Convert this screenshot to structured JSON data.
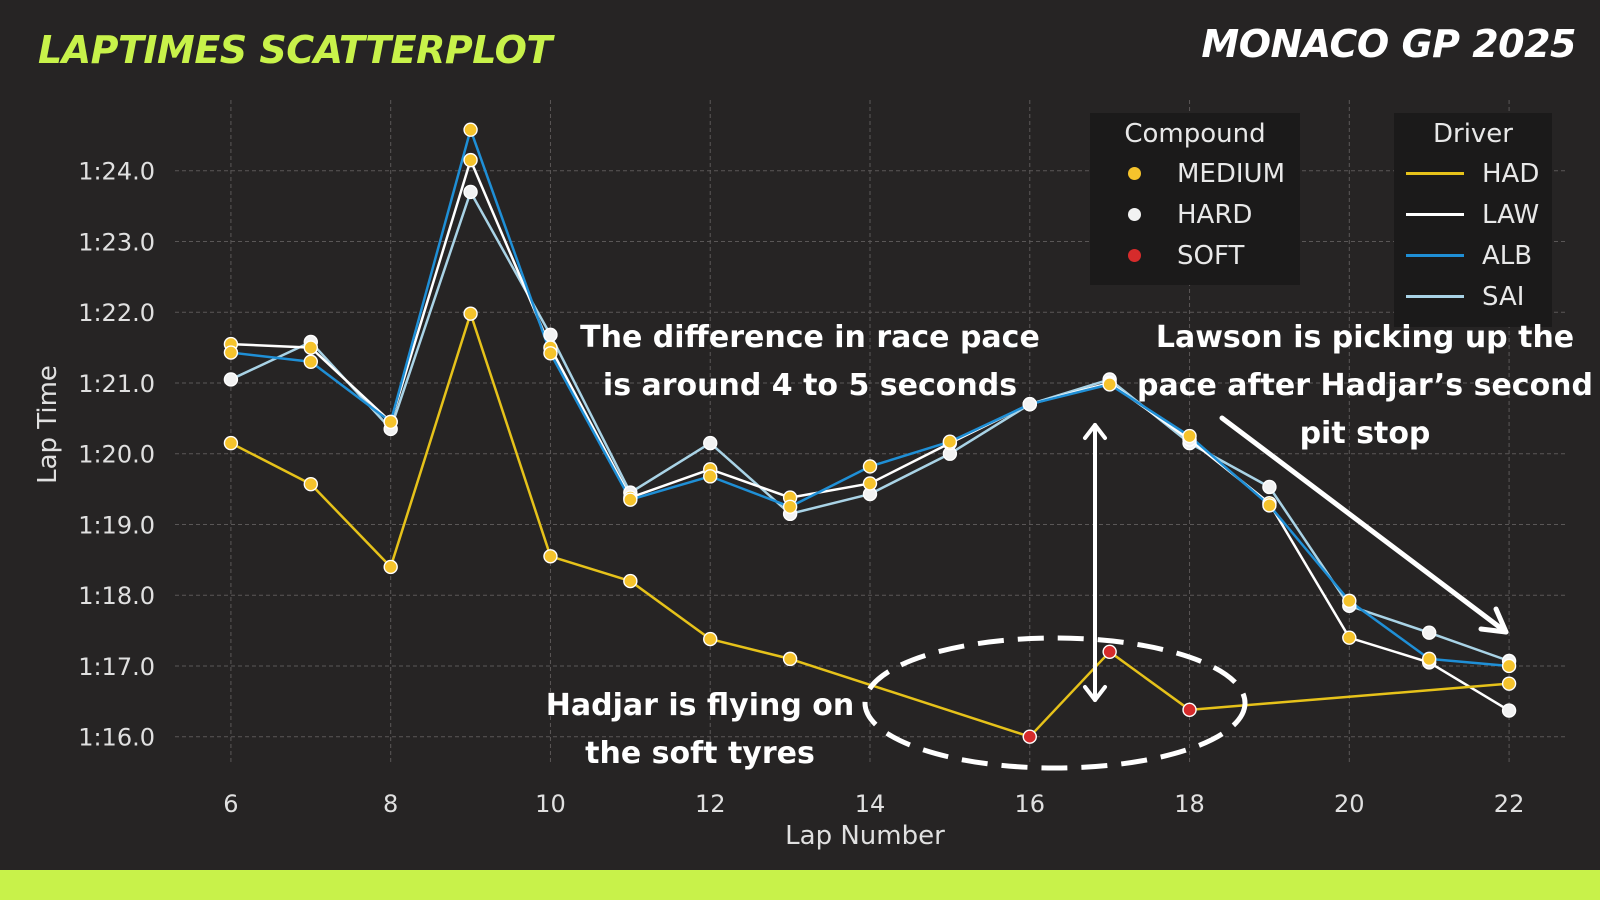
{
  "header": {
    "title": "LAPTIMES SCATTERPLOT",
    "race": "MONACO GP 2025"
  },
  "legend_compound": {
    "title": "Compound",
    "items": [
      {
        "label": "MEDIUM",
        "color": "#f5c32c"
      },
      {
        "label": "HARD",
        "color": "#f2f2f2"
      },
      {
        "label": "SOFT",
        "color": "#d62b2b"
      }
    ]
  },
  "legend_driver": {
    "title": "Driver",
    "items": [
      {
        "label": "HAD",
        "color": "#e6c21a"
      },
      {
        "label": "LAW",
        "color": "#ffffff"
      },
      {
        "label": "ALB",
        "color": "#1f8fd6"
      },
      {
        "label": "SAI",
        "color": "#a9d3e6"
      }
    ]
  },
  "annotations": {
    "pace_gap": "The difference in race pace\nis around 4 to 5 seconds",
    "lawson": "Lawson is picking up the\npace after Hadjar’s second\npit stop",
    "hadjar": "Hadjar is flying on\nthe soft tyres"
  },
  "chart_data": {
    "type": "scatter",
    "xlabel": "Lap Number",
    "ylabel": "Lap Time",
    "xlim": [
      5.3,
      22.7
    ],
    "ylim": [
      75.6,
      85.0
    ],
    "x_ticks": [
      6,
      8,
      10,
      12,
      14,
      16,
      18,
      20,
      22
    ],
    "y_ticks": [
      {
        "value": 76,
        "label": "1:16.0"
      },
      {
        "value": 77,
        "label": "1:17.0"
      },
      {
        "value": 78,
        "label": "1:18.0"
      },
      {
        "value": 79,
        "label": "1:19.0"
      },
      {
        "value": 80,
        "label": "1:20.0"
      },
      {
        "value": 81,
        "label": "1:21.0"
      },
      {
        "value": 82,
        "label": "1:22.0"
      },
      {
        "value": 83,
        "label": "1:23.0"
      },
      {
        "value": 84,
        "label": "1:24.0"
      }
    ],
    "grid": true,
    "series": [
      {
        "name": "SAI",
        "color": "#a9d3e6",
        "x": [
          6,
          7,
          8,
          9,
          10,
          11,
          12,
          13,
          14,
          15,
          16,
          17,
          18,
          19,
          20,
          21,
          22
        ],
        "y": [
          81.05,
          81.58,
          80.35,
          83.7,
          81.68,
          79.45,
          80.15,
          79.15,
          79.43,
          80.0,
          80.7,
          81.05,
          80.15,
          79.53,
          77.85,
          77.47,
          77.07
        ],
        "compound": [
          "HARD",
          "HARD",
          "HARD",
          "HARD",
          "HARD",
          "HARD",
          "HARD",
          "HARD",
          "HARD",
          "HARD",
          "HARD",
          "HARD",
          "HARD",
          "HARD",
          "HARD",
          "HARD",
          "HARD"
        ]
      },
      {
        "name": "LAW",
        "color": "#ffffff",
        "x": [
          6,
          7,
          8,
          9,
          10,
          11,
          12,
          13,
          14,
          15,
          16,
          17,
          18,
          19,
          20,
          21,
          22
        ],
        "y": [
          81.55,
          81.5,
          80.45,
          84.15,
          81.5,
          79.38,
          79.78,
          79.38,
          79.58,
          80.15,
          80.7,
          81.0,
          80.2,
          79.3,
          77.4,
          77.05,
          76.37
        ],
        "compound": [
          "MEDIUM",
          "MEDIUM",
          "MEDIUM",
          "MEDIUM",
          "MEDIUM",
          "MEDIUM",
          "MEDIUM",
          "MEDIUM",
          "MEDIUM",
          "MEDIUM",
          "HARD",
          "HARD",
          "HARD",
          "MEDIUM",
          "MEDIUM",
          "HARD",
          "HARD"
        ]
      },
      {
        "name": "ALB",
        "color": "#1f8fd6",
        "x": [
          6,
          7,
          8,
          9,
          10,
          11,
          12,
          13,
          14,
          15,
          16,
          17,
          18,
          19,
          20,
          21,
          22
        ],
        "y": [
          81.43,
          81.3,
          80.45,
          84.58,
          81.42,
          79.35,
          79.68,
          79.25,
          79.82,
          80.17,
          80.7,
          80.98,
          80.25,
          79.27,
          77.92,
          77.1,
          77.0
        ],
        "compound": [
          "MEDIUM",
          "MEDIUM",
          "MEDIUM",
          "MEDIUM",
          "MEDIUM",
          "MEDIUM",
          "MEDIUM",
          "MEDIUM",
          "MEDIUM",
          "MEDIUM",
          "HARD",
          "MEDIUM",
          "MEDIUM",
          "MEDIUM",
          "MEDIUM",
          "MEDIUM",
          "MEDIUM"
        ]
      },
      {
        "name": "HAD",
        "color": "#e6c21a",
        "x": [
          6,
          7,
          8,
          9,
          10,
          11,
          12,
          13,
          16,
          17,
          18,
          22
        ],
        "y": [
          80.15,
          79.57,
          78.4,
          81.98,
          78.55,
          78.2,
          77.38,
          77.1,
          76.0,
          77.2,
          76.38,
          76.75
        ],
        "compound": [
          "MEDIUM",
          "MEDIUM",
          "MEDIUM",
          "MEDIUM",
          "MEDIUM",
          "MEDIUM",
          "MEDIUM",
          "MEDIUM",
          "SOFT",
          "SOFT",
          "SOFT",
          "MEDIUM"
        ]
      }
    ]
  }
}
